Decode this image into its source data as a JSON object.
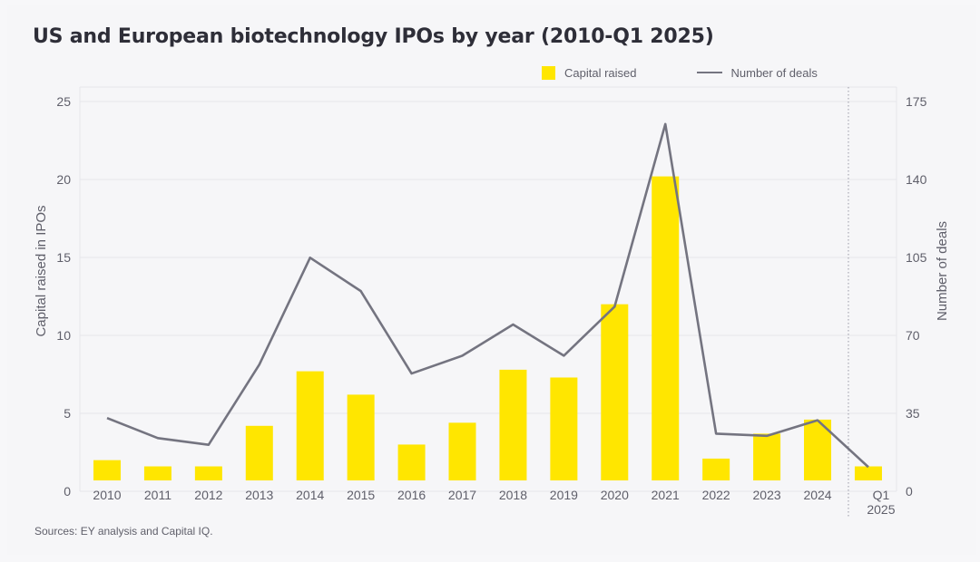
{
  "title": "US and European biotechnology IPOs by year (2010-Q1 2025)",
  "source": "Sources: EY analysis and Capital IQ.",
  "colors": {
    "bar": "#ffe600",
    "line": "#747480",
    "text": "#5f5f6a",
    "grid": "#e6e6ea"
  },
  "chart_data": {
    "type": "bar",
    "categories": [
      "2010",
      "2011",
      "2012",
      "2013",
      "2014",
      "2015",
      "2016",
      "2017",
      "2018",
      "2019",
      "2020",
      "2021",
      "2022",
      "2023",
      "2024",
      "Q1 2025"
    ],
    "series": [
      {
        "name": "Capital raised",
        "type": "bar",
        "axis": "left",
        "values": [
          1.3,
          0.9,
          0.9,
          3.5,
          7.0,
          5.5,
          2.3,
          3.7,
          7.1,
          6.6,
          11.3,
          19.5,
          1.4,
          3.0,
          3.9,
          0.9
        ]
      },
      {
        "name": "Number of deals",
        "type": "line",
        "axis": "right",
        "values": [
          28,
          19,
          16,
          52,
          100,
          85,
          48,
          56,
          70,
          56,
          78,
          160,
          21,
          20,
          27,
          6
        ]
      }
    ],
    "ylabel": "Capital raised in IPOs",
    "y2label": "Number of deals",
    "ylim": [
      0,
      25
    ],
    "yticks": [
      0,
      5,
      10,
      15,
      20,
      25
    ],
    "y2lim": [
      0,
      175
    ],
    "y2ticks": [
      0,
      35,
      70,
      105,
      140,
      175
    ],
    "grid": true,
    "legend_position": "top-right"
  }
}
